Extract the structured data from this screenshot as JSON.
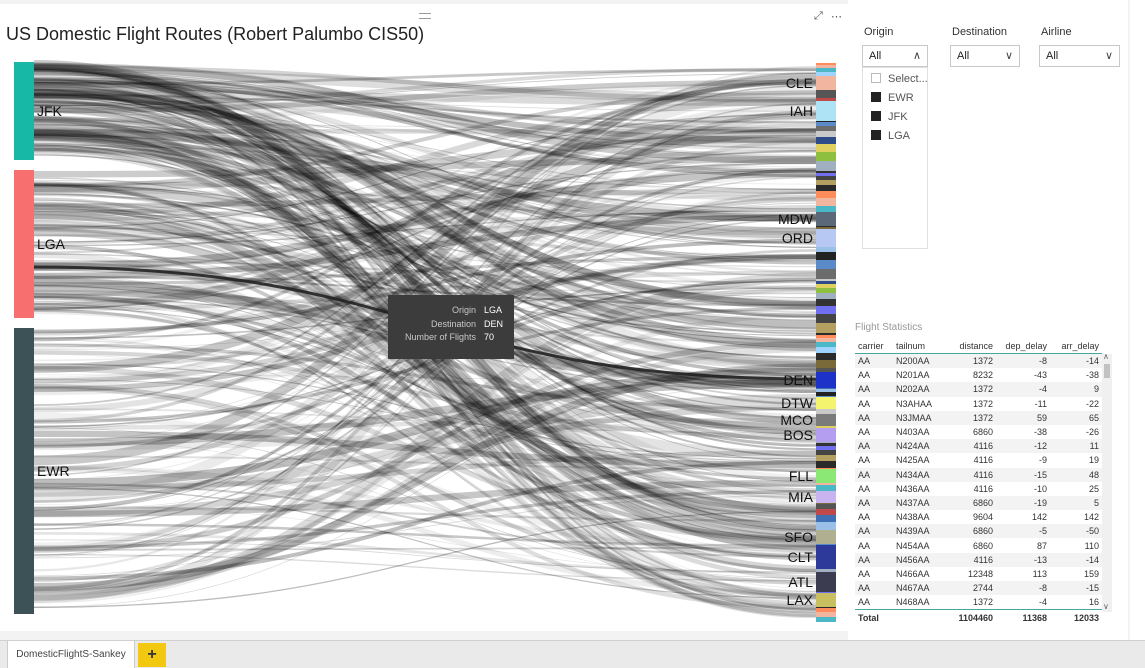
{
  "visual": {
    "title": "US Domestic Flight  Routes (Robert Palumbo CIS50)",
    "focus_icon": "focus-mode-icon",
    "more_icon": "more-options-icon"
  },
  "sankey": {
    "origins": [
      {
        "name": "JFK",
        "color": "#17b8a6"
      },
      {
        "name": "LGA",
        "color": "#f76f6f"
      },
      {
        "name": "EWR",
        "color": "#3d5257"
      }
    ],
    "destinations": [
      "CLE",
      "IAH",
      "MDW",
      "ORD",
      "DEN",
      "DTW",
      "MCO",
      "BOS",
      "FLL",
      "MIA",
      "SFO",
      "CLT",
      "ATL",
      "LAX"
    ],
    "highlight": {
      "origin": "LGA",
      "destination": "DEN"
    }
  },
  "tooltip": {
    "rows": [
      {
        "label": "Origin",
        "value": "LGA"
      },
      {
        "label": "Destination",
        "value": "DEN"
      },
      {
        "label": "Number of Flights",
        "value": "70"
      }
    ]
  },
  "slicers": {
    "origin": {
      "title": "Origin",
      "value": "All",
      "items": [
        "Select...",
        "EWR",
        "JFK",
        "LGA"
      ]
    },
    "destination": {
      "title": "Destination",
      "value": "All"
    },
    "airline": {
      "title": "Airline",
      "value": "All"
    }
  },
  "stats": {
    "title": "Flight Statistics",
    "columns": [
      "carrier",
      "tailnum",
      "distance",
      "dep_delay",
      "arr_delay"
    ],
    "rows": [
      [
        "AA",
        "N200AA",
        "1372",
        "-8",
        "-14"
      ],
      [
        "AA",
        "N201AA",
        "8232",
        "-43",
        "-38"
      ],
      [
        "AA",
        "N202AA",
        "1372",
        "-4",
        "9"
      ],
      [
        "AA",
        "N3AHAA",
        "1372",
        "-11",
        "-22"
      ],
      [
        "AA",
        "N3JMAA",
        "1372",
        "59",
        "65"
      ],
      [
        "AA",
        "N403AA",
        "6860",
        "-38",
        "-26"
      ],
      [
        "AA",
        "N424AA",
        "4116",
        "-12",
        "11"
      ],
      [
        "AA",
        "N425AA",
        "4116",
        "-9",
        "19"
      ],
      [
        "AA",
        "N434AA",
        "4116",
        "-15",
        "48"
      ],
      [
        "AA",
        "N436AA",
        "4116",
        "-10",
        "25"
      ],
      [
        "AA",
        "N437AA",
        "6860",
        "-19",
        "5"
      ],
      [
        "AA",
        "N438AA",
        "9604",
        "142",
        "142"
      ],
      [
        "AA",
        "N439AA",
        "6860",
        "-5",
        "-50"
      ],
      [
        "AA",
        "N454AA",
        "6860",
        "87",
        "110"
      ],
      [
        "AA",
        "N456AA",
        "4116",
        "-13",
        "-14"
      ],
      [
        "AA",
        "N466AA",
        "12348",
        "113",
        "159"
      ],
      [
        "AA",
        "N467AA",
        "2744",
        "-8",
        "-15"
      ],
      [
        "AA",
        "N468AA",
        "1372",
        "-4",
        "16"
      ]
    ],
    "total": {
      "label": "Total",
      "distance": "1104460",
      "dep_delay": "11368",
      "arr_delay": "12033"
    }
  },
  "tabs": {
    "page": "DomesticFlightS-Sankey",
    "add": "+"
  }
}
